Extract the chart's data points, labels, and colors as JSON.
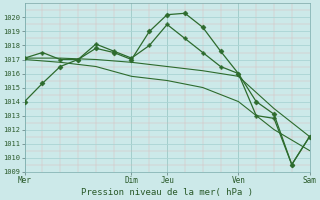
{
  "title": "Pression niveau de la mer( hPa )",
  "background_color": "#cce9e9",
  "grid_major_color": "#aad4d4",
  "grid_minor_color": "#ddb8b8",
  "line_color": "#2d6b2d",
  "ylim": [
    1009,
    1021
  ],
  "xlim": [
    0,
    8
  ],
  "yticks": [
    1009,
    1010,
    1011,
    1012,
    1013,
    1014,
    1015,
    1016,
    1017,
    1018,
    1019,
    1020
  ],
  "xtick_positions": [
    0,
    3,
    4,
    6,
    8
  ],
  "xtick_labels": [
    "Mer",
    "Dim",
    "Jeu",
    "Ven",
    "Sam"
  ],
  "vline_positions": [
    0,
    3,
    4,
    6,
    8
  ],
  "series": [
    {
      "x": [
        0,
        0.5,
        1.0,
        1.5,
        2.0,
        2.5,
        3.0,
        3.5,
        4.0,
        4.5,
        5.0,
        5.5,
        6.0,
        6.5,
        7.0,
        7.5,
        8.0
      ],
      "y": [
        1014.0,
        1015.3,
        1016.5,
        1017.0,
        1017.8,
        1017.5,
        1017.0,
        1019.0,
        1020.2,
        1020.3,
        1019.3,
        1017.6,
        1016.0,
        1014.0,
        1013.1,
        1009.5,
        1011.5
      ],
      "marker": "D",
      "markersize": 2.5,
      "linewidth": 0.9
    },
    {
      "x": [
        0,
        0.5,
        1.0,
        1.5,
        2.0,
        2.5,
        3.0,
        3.5,
        4.0,
        4.5,
        5.0,
        5.5,
        6.0,
        6.5,
        7.0,
        7.5,
        8.0
      ],
      "y": [
        1017.1,
        1017.5,
        1017.0,
        1017.0,
        1018.1,
        1017.6,
        1017.1,
        1018.0,
        1019.5,
        1018.5,
        1017.5,
        1016.5,
        1016.0,
        1013.0,
        1012.8,
        1009.5,
        1011.5
      ],
      "marker": "P",
      "markersize": 2.5,
      "linewidth": 0.9
    },
    {
      "x": [
        0,
        1.0,
        2.0,
        3.0,
        4.0,
        5.0,
        6.0,
        7.0,
        8.0
      ],
      "y": [
        1017.1,
        1017.1,
        1017.0,
        1016.8,
        1016.5,
        1016.2,
        1015.8,
        1013.5,
        1011.5
      ],
      "marker": null,
      "linewidth": 0.8
    },
    {
      "x": [
        0,
        1.0,
        2.0,
        3.0,
        4.0,
        5.0,
        6.0,
        7.0,
        8.0
      ],
      "y": [
        1017.0,
        1016.8,
        1016.5,
        1015.8,
        1015.5,
        1015.0,
        1014.0,
        1012.0,
        1010.5
      ],
      "marker": null,
      "linewidth": 0.8
    }
  ]
}
